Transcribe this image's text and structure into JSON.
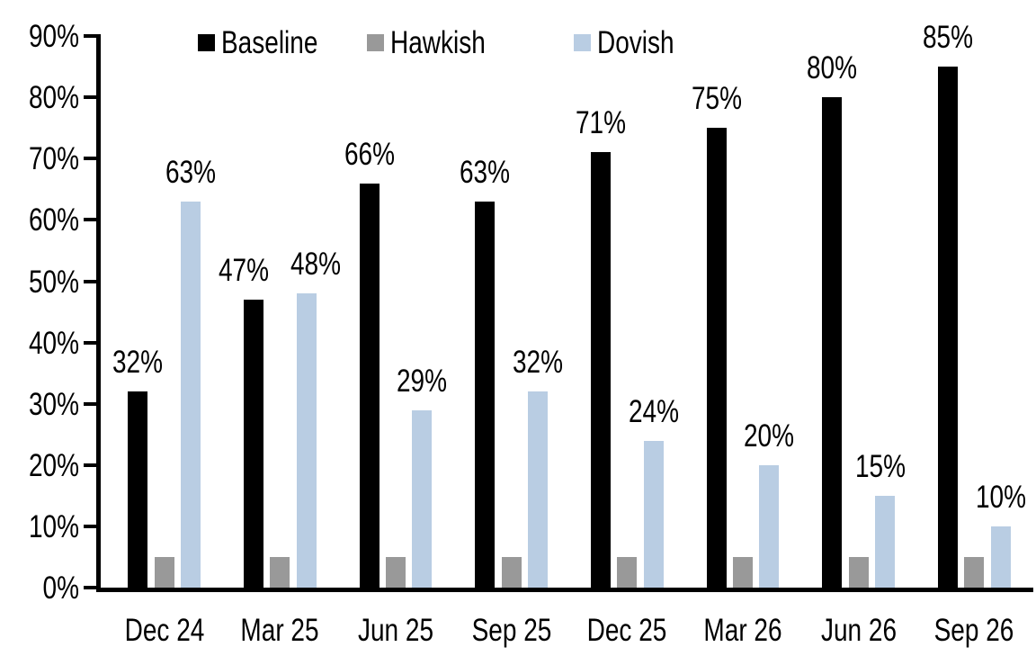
{
  "chart_data": {
    "type": "bar",
    "title": "",
    "categories": [
      "Dec 24",
      "Mar 25",
      "Jun 25",
      "Sep 25",
      "Dec 25",
      "Mar 26",
      "Jun 26",
      "Sep 26"
    ],
    "series": [
      {
        "name": "Baseline",
        "color": "#000000",
        "values": [
          32,
          47,
          66,
          63,
          71,
          75,
          80,
          85
        ],
        "data_labels": [
          "32%",
          "47%",
          "66%",
          "63%",
          "71%",
          "75%",
          "80%",
          "85%"
        ],
        "label_dx": [
          0,
          -11,
          0,
          0,
          0,
          0,
          0,
          0
        ]
      },
      {
        "name": "Hawkish",
        "color": "#999999",
        "values": [
          5,
          5,
          5,
          5,
          5,
          5,
          5,
          5
        ],
        "data_labels": null,
        "label_dx": null
      },
      {
        "name": "Dovish",
        "color": "#b9cde3",
        "values": [
          63,
          48,
          29,
          32,
          24,
          20,
          15,
          10
        ],
        "data_labels": [
          "63%",
          "48%",
          "29%",
          "32%",
          "24%",
          "20%",
          "15%",
          "10%"
        ],
        "label_dx": [
          0,
          10,
          0,
          0,
          0,
          0,
          -5,
          0
        ]
      }
    ],
    "y_axis": {
      "min": 0,
      "max": 90,
      "step": 10,
      "tick_labels": [
        "0%",
        "10%",
        "20%",
        "30%",
        "40%",
        "50%",
        "60%",
        "70%",
        "80%",
        "90%"
      ]
    },
    "x_axis": {
      "tick_labels": [
        "Dec 24",
        "Mar 25",
        "Jun 25",
        "Sep 25",
        "Dec 25",
        "Mar 26",
        "Jun 26",
        "Sep 26"
      ]
    },
    "legend_position": "top",
    "grid": false,
    "axis_color": "#000000",
    "background": "#ffffff"
  }
}
